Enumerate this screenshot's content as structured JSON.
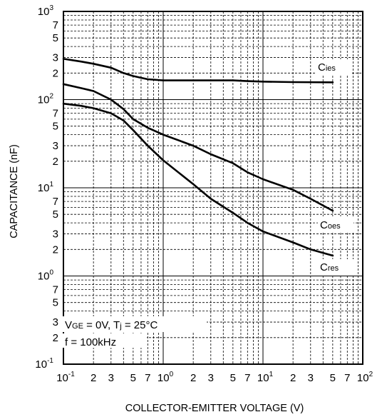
{
  "chart_data": {
    "type": "line",
    "xlabel": "COLLECTOR-EMITTER VOLTAGE (V)",
    "ylabel": "CAPACITANCE (nF)",
    "x_scale": "log",
    "y_scale": "log",
    "xlim": [
      0.1,
      100
    ],
    "ylim": [
      0.1,
      1000
    ],
    "grid": true,
    "x_ticks": [
      {
        "value": 0.1,
        "base": "10",
        "exp": "-1"
      },
      {
        "value": 0.2,
        "base": "2",
        "exp": ""
      },
      {
        "value": 0.3,
        "base": "3",
        "exp": ""
      },
      {
        "value": 0.5,
        "base": "5",
        "exp": ""
      },
      {
        "value": 0.7,
        "base": "7",
        "exp": ""
      },
      {
        "value": 1,
        "base": "10",
        "exp": "0"
      },
      {
        "value": 2,
        "base": "2",
        "exp": ""
      },
      {
        "value": 3,
        "base": "3",
        "exp": ""
      },
      {
        "value": 5,
        "base": "5",
        "exp": ""
      },
      {
        "value": 7,
        "base": "7",
        "exp": ""
      },
      {
        "value": 10,
        "base": "10",
        "exp": "1"
      },
      {
        "value": 20,
        "base": "2",
        "exp": ""
      },
      {
        "value": 30,
        "base": "3",
        "exp": ""
      },
      {
        "value": 50,
        "base": "5",
        "exp": ""
      },
      {
        "value": 70,
        "base": "7",
        "exp": ""
      },
      {
        "value": 100,
        "base": "10",
        "exp": "2"
      }
    ],
    "y_ticks": [
      {
        "value": 0.1,
        "base": "10",
        "exp": "-1"
      },
      {
        "value": 0.2,
        "base": "2",
        "exp": ""
      },
      {
        "value": 0.3,
        "base": "3",
        "exp": ""
      },
      {
        "value": 0.5,
        "base": "5",
        "exp": ""
      },
      {
        "value": 0.7,
        "base": "7",
        "exp": ""
      },
      {
        "value": 1,
        "base": "10",
        "exp": "0"
      },
      {
        "value": 2,
        "base": "2",
        "exp": ""
      },
      {
        "value": 3,
        "base": "3",
        "exp": ""
      },
      {
        "value": 5,
        "base": "5",
        "exp": ""
      },
      {
        "value": 7,
        "base": "7",
        "exp": ""
      },
      {
        "value": 10,
        "base": "10",
        "exp": "1"
      },
      {
        "value": 20,
        "base": "2",
        "exp": ""
      },
      {
        "value": 30,
        "base": "3",
        "exp": ""
      },
      {
        "value": 50,
        "base": "5",
        "exp": ""
      },
      {
        "value": 70,
        "base": "7",
        "exp": ""
      },
      {
        "value": 100,
        "base": "10",
        "exp": "2"
      },
      {
        "value": 200,
        "base": "2",
        "exp": ""
      },
      {
        "value": 300,
        "base": "3",
        "exp": ""
      },
      {
        "value": 500,
        "base": "5",
        "exp": ""
      },
      {
        "value": 700,
        "base": "7",
        "exp": ""
      },
      {
        "value": 1000,
        "base": "10",
        "exp": "3"
      }
    ],
    "series": [
      {
        "name_main": "C",
        "name_sub": "ies",
        "x": [
          0.1,
          0.15,
          0.2,
          0.3,
          0.4,
          0.5,
          0.7,
          1,
          2,
          5,
          7,
          10,
          20,
          50
        ],
        "y": [
          290,
          270,
          255,
          230,
          200,
          185,
          170,
          165,
          165,
          165,
          162,
          160,
          158,
          157
        ]
      },
      {
        "name_main": "C",
        "name_sub": "oes",
        "x": [
          0.1,
          0.15,
          0.2,
          0.3,
          0.4,
          0.5,
          0.7,
          1,
          2,
          3,
          5,
          7,
          10,
          20,
          30,
          50
        ],
        "y": [
          150,
          135,
          125,
          100,
          78,
          60,
          48,
          40,
          30,
          24,
          19,
          15,
          12.5,
          9.5,
          7.5,
          5.5
        ]
      },
      {
        "name_main": "C",
        "name_sub": "res",
        "x": [
          0.1,
          0.15,
          0.2,
          0.3,
          0.4,
          0.5,
          0.7,
          1,
          2,
          3,
          5,
          7,
          10,
          20,
          30,
          50
        ],
        "y": [
          90,
          85,
          80,
          70,
          58,
          45,
          30,
          20.5,
          11,
          7.5,
          5.2,
          4,
          3.2,
          2.4,
          2,
          1.7
        ]
      }
    ],
    "annotation": {
      "line1_a": "V",
      "line1_a_sub": "GE",
      "line1_b": " = 0V, T",
      "line1_b_sub": "j",
      "line1_c": " = 25°C",
      "line2": "f = 100kHz"
    },
    "colors": {
      "line": "#000000",
      "grid": "#000000",
      "background": "#ffffff"
    }
  }
}
